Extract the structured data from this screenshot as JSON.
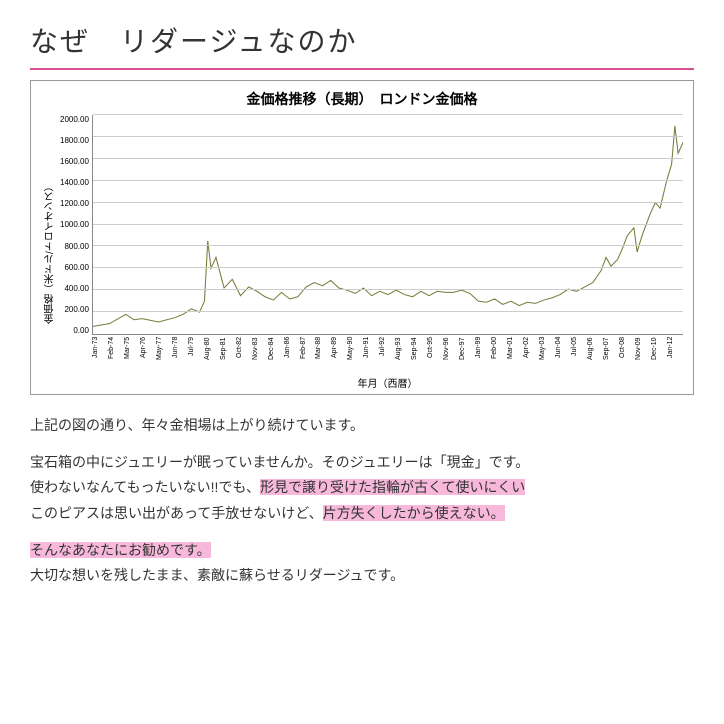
{
  "heading": "なぜ　リダージュなのか",
  "hr_color": "#d94f8f",
  "chart": {
    "title": "金価格推移（長期）　ロンドン金価格",
    "y_label": "金価格（米ドル/トロイオンス）",
    "x_label": "年月（西暦）",
    "ylim": [
      0,
      2000
    ],
    "ytick_step": 200,
    "yticks": [
      "2000.00",
      "1800.00",
      "1600.00",
      "1400.00",
      "1200.00",
      "1000.00",
      "800.00",
      "600.00",
      "400.00",
      "200.00",
      "0.00"
    ],
    "xticks": [
      "Jan-73",
      "Feb-74",
      "Mar-75",
      "Apr-76",
      "May-77",
      "Jun-78",
      "Jul-79",
      "Aug-80",
      "Sep-81",
      "Oct-82",
      "Nov-83",
      "Dec-84",
      "Jan-86",
      "Feb-87",
      "Mar-88",
      "Apr-89",
      "May-90",
      "Jun-91",
      "Jul-92",
      "Aug-93",
      "Sep-94",
      "Oct-95",
      "Nov-96",
      "Dec-97",
      "Jan-99",
      "Feb-00",
      "Mar-01",
      "Apr-02",
      "May-03",
      "Jun-04",
      "Jul-05",
      "Aug-06",
      "Sep-07",
      "Oct-08",
      "Nov-09",
      "Dec-10",
      "Jan-12"
    ],
    "grid_color": "#cccccc",
    "line_color": "#7a7a3a",
    "line_width": 1,
    "series": [
      [
        0,
        70
      ],
      [
        1,
        95
      ],
      [
        2,
        180
      ],
      [
        2.5,
        130
      ],
      [
        3,
        140
      ],
      [
        4,
        110
      ],
      [
        5,
        150
      ],
      [
        5.5,
        180
      ],
      [
        6,
        230
      ],
      [
        6.5,
        200
      ],
      [
        6.8,
        300
      ],
      [
        7,
        850
      ],
      [
        7.2,
        600
      ],
      [
        7.5,
        700
      ],
      [
        8,
        420
      ],
      [
        8.5,
        500
      ],
      [
        9,
        350
      ],
      [
        9.5,
        430
      ],
      [
        10,
        390
      ],
      [
        10.5,
        340
      ],
      [
        11,
        310
      ],
      [
        11.5,
        380
      ],
      [
        12,
        320
      ],
      [
        12.5,
        340
      ],
      [
        13,
        430
      ],
      [
        13.5,
        470
      ],
      [
        14,
        440
      ],
      [
        14.5,
        490
      ],
      [
        15,
        420
      ],
      [
        15.5,
        400
      ],
      [
        16,
        370
      ],
      [
        16.5,
        420
      ],
      [
        17,
        350
      ],
      [
        17.5,
        390
      ],
      [
        18,
        360
      ],
      [
        18.5,
        400
      ],
      [
        19,
        360
      ],
      [
        19.5,
        340
      ],
      [
        20,
        390
      ],
      [
        20.5,
        350
      ],
      [
        21,
        390
      ],
      [
        21.5,
        380
      ],
      [
        22,
        380
      ],
      [
        22.5,
        400
      ],
      [
        23,
        370
      ],
      [
        23.5,
        300
      ],
      [
        24,
        290
      ],
      [
        24.5,
        320
      ],
      [
        25,
        270
      ],
      [
        25.5,
        300
      ],
      [
        26,
        260
      ],
      [
        26.5,
        290
      ],
      [
        27,
        280
      ],
      [
        27.5,
        310
      ],
      [
        28,
        330
      ],
      [
        28.5,
        360
      ],
      [
        29,
        410
      ],
      [
        29.5,
        390
      ],
      [
        30,
        430
      ],
      [
        30.5,
        470
      ],
      [
        31,
        580
      ],
      [
        31.3,
        700
      ],
      [
        31.6,
        620
      ],
      [
        32,
        680
      ],
      [
        32.3,
        780
      ],
      [
        32.6,
        900
      ],
      [
        33,
        970
      ],
      [
        33.2,
        750
      ],
      [
        33.5,
        900
      ],
      [
        34,
        1100
      ],
      [
        34.3,
        1200
      ],
      [
        34.6,
        1150
      ],
      [
        35,
        1400
      ],
      [
        35.3,
        1550
      ],
      [
        35.5,
        1900
      ],
      [
        35.7,
        1650
      ],
      [
        36,
        1750
      ]
    ]
  },
  "body": {
    "p1": "上記の図の通り、年々金相場は上がり続けています。",
    "p2_a": "宝石箱の中にジュエリーが眠っていませんか。そのジュエリーは「現金」です。",
    "p2_b": "使わないなんてもったいない!!でも、",
    "p2_hl1": "形見で譲り受けた指輪が古くて使いにくい",
    "p2_c": "このピアスは思い出があって手放せないけど、",
    "p2_hl2": "片方失くしたから使えない。",
    "p3_hl": "そんなあなたにお勧めです。",
    "p3_b": "大切な想いを残したまま、素敵に蘇らせるリダージュです。",
    "highlight_color": "#f7b8db"
  }
}
